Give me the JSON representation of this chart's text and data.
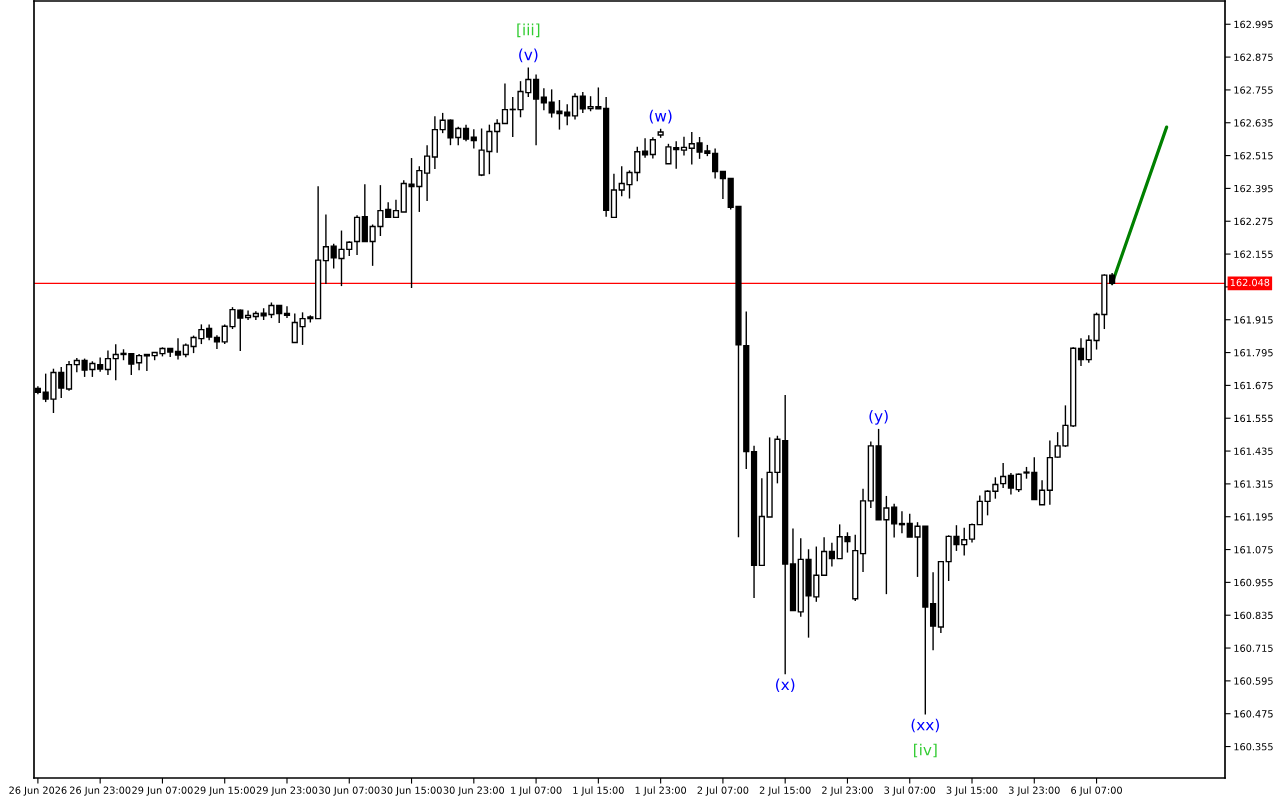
{
  "chart_data": {
    "type": "candlestick",
    "categories": [
      "26 Jun 2026",
      null,
      null,
      null,
      null,
      null,
      null,
      null,
      "26 Jun 23:00",
      null,
      null,
      null,
      null,
      null,
      null,
      null,
      "29 Jun 07:00",
      null,
      null,
      null,
      null,
      null,
      null,
      null,
      "29 Jun 15:00",
      null,
      null,
      null,
      null,
      null,
      null,
      null,
      "29 Jun 23:00",
      null,
      null,
      null,
      null,
      null,
      null,
      null,
      "30 Jun 07:00",
      null,
      null,
      null,
      null,
      null,
      null,
      null,
      "30 Jun 15:00",
      null,
      null,
      null,
      null,
      null,
      null,
      null,
      "30 Jun 23:00",
      null,
      null,
      null,
      null,
      null,
      null,
      null,
      "1 Jul 07:00",
      null,
      null,
      null,
      null,
      null,
      null,
      null,
      "1 Jul 15:00",
      null,
      null,
      null,
      null,
      null,
      null,
      null,
      "1 Jul 23:00",
      null,
      null,
      null,
      null,
      null,
      null,
      null,
      "2 Jul 07:00",
      null,
      null,
      null,
      null,
      null,
      null,
      null,
      "2 Jul 15:00",
      null,
      null,
      null,
      null,
      null,
      null,
      null,
      "2 Jul 23:00",
      null,
      null,
      null,
      null,
      null,
      null,
      null,
      "3 Jul 07:00",
      null,
      null,
      null,
      null,
      null,
      null,
      null,
      "3 Jul 15:00",
      null,
      null,
      null,
      null,
      null,
      null,
      null,
      "3 Jul 23:00",
      null,
      null,
      null,
      null,
      null,
      null,
      null,
      "6 Jul 07:00",
      null,
      null,
      null,
      null,
      null,
      null,
      null,
      null,
      null,
      null,
      null,
      null,
      null,
      null,
      null,
      null
    ],
    "ohlc": [
      [
        161.664,
        161.672,
        161.643,
        161.65
      ],
      [
        161.65,
        161.718,
        161.614,
        161.625
      ],
      [
        161.625,
        161.736,
        161.574,
        161.722
      ],
      [
        161.722,
        161.742,
        161.629,
        161.665
      ],
      [
        161.662,
        161.764,
        161.655,
        161.751
      ],
      [
        161.751,
        161.775,
        161.723,
        161.766
      ],
      [
        161.766,
        161.773,
        161.706,
        161.731
      ],
      [
        161.733,
        161.763,
        161.706,
        161.755
      ],
      [
        161.751,
        161.777,
        161.725,
        161.735
      ],
      [
        161.733,
        161.803,
        161.713,
        161.773
      ],
      [
        161.773,
        161.825,
        161.694,
        161.788
      ],
      [
        161.792,
        161.807,
        161.767,
        161.788
      ],
      [
        161.791,
        161.792,
        161.713,
        161.753
      ],
      [
        161.758,
        161.79,
        161.73,
        161.784
      ],
      [
        161.788,
        161.788,
        161.728,
        161.783
      ],
      [
        161.784,
        161.797,
        161.767,
        161.795
      ],
      [
        161.791,
        161.814,
        161.781,
        161.81
      ],
      [
        161.81,
        161.812,
        161.779,
        161.797
      ],
      [
        161.799,
        161.847,
        161.77,
        161.786
      ],
      [
        161.788,
        161.828,
        161.778,
        161.822
      ],
      [
        161.817,
        161.857,
        161.793,
        161.85
      ],
      [
        161.846,
        161.898,
        161.826,
        161.879
      ],
      [
        161.883,
        161.898,
        161.84,
        161.852
      ],
      [
        161.85,
        161.858,
        161.808,
        161.834
      ],
      [
        161.834,
        161.898,
        161.826,
        161.891
      ],
      [
        161.89,
        161.961,
        161.881,
        161.952
      ],
      [
        161.95,
        161.952,
        161.801,
        161.921
      ],
      [
        161.923,
        161.949,
        161.914,
        161.931
      ],
      [
        161.927,
        161.946,
        161.914,
        161.938
      ],
      [
        161.939,
        161.957,
        161.914,
        161.929
      ],
      [
        161.934,
        161.978,
        161.921,
        161.967
      ],
      [
        161.967,
        161.967,
        161.903,
        161.938
      ],
      [
        161.938,
        161.964,
        161.921,
        161.931
      ],
      [
        161.832,
        161.938,
        161.832,
        161.905
      ],
      [
        161.89,
        161.942,
        161.823,
        161.919
      ],
      [
        161.925,
        161.931,
        161.905,
        161.919
      ],
      [
        161.919,
        162.403,
        161.919,
        162.133
      ],
      [
        162.131,
        162.3,
        162.046,
        162.182
      ],
      [
        162.184,
        162.193,
        162.102,
        162.141
      ],
      [
        162.139,
        162.241,
        162.038,
        162.172
      ],
      [
        162.172,
        162.202,
        162.148,
        162.198
      ],
      [
        162.201,
        162.297,
        162.152,
        162.289
      ],
      [
        162.292,
        162.41,
        162.201,
        162.201
      ],
      [
        162.201,
        162.263,
        162.112,
        162.256
      ],
      [
        162.256,
        162.407,
        162.221,
        162.314
      ],
      [
        162.318,
        162.344,
        162.287,
        162.289
      ],
      [
        162.289,
        162.354,
        162.289,
        162.314
      ],
      [
        162.309,
        162.425,
        162.309,
        162.413
      ],
      [
        162.41,
        162.506,
        162.031,
        162.402
      ],
      [
        162.402,
        162.476,
        162.309,
        162.46
      ],
      [
        162.451,
        162.553,
        162.349,
        162.513
      ],
      [
        162.51,
        162.659,
        162.466,
        162.61
      ],
      [
        162.61,
        162.671,
        162.597,
        162.644
      ],
      [
        162.644,
        162.647,
        162.553,
        162.58
      ],
      [
        162.581,
        162.62,
        162.553,
        162.614
      ],
      [
        162.614,
        162.628,
        162.567,
        162.575
      ],
      [
        162.582,
        162.611,
        162.541,
        162.57
      ],
      [
        162.444,
        162.614,
        162.44,
        162.535
      ],
      [
        162.53,
        162.628,
        162.447,
        162.603
      ],
      [
        162.603,
        162.648,
        162.525,
        162.632
      ],
      [
        162.632,
        162.778,
        162.63,
        162.683
      ],
      [
        162.684,
        162.729,
        162.583,
        162.683
      ],
      [
        162.683,
        162.787,
        162.655,
        162.749
      ],
      [
        162.745,
        162.837,
        162.729,
        162.793
      ],
      [
        162.793,
        162.811,
        162.553,
        162.722
      ],
      [
        162.728,
        162.761,
        162.681,
        162.708
      ],
      [
        162.71,
        162.757,
        162.654,
        162.671
      ],
      [
        162.677,
        162.718,
        162.61,
        162.669
      ],
      [
        162.674,
        162.703,
        162.626,
        162.66
      ],
      [
        162.66,
        162.743,
        162.647,
        162.731
      ],
      [
        162.732,
        162.747,
        162.671,
        162.686
      ],
      [
        162.687,
        162.732,
        162.677,
        162.694
      ],
      [
        162.694,
        162.764,
        162.685,
        162.686
      ],
      [
        162.687,
        162.729,
        162.291,
        162.315
      ],
      [
        162.289,
        162.449,
        162.289,
        162.389
      ],
      [
        162.389,
        162.476,
        162.366,
        162.413
      ],
      [
        162.409,
        162.461,
        162.358,
        162.453
      ],
      [
        162.453,
        162.547,
        162.421,
        162.529
      ],
      [
        162.531,
        162.578,
        162.507,
        162.518
      ],
      [
        162.519,
        162.582,
        162.504,
        162.573
      ],
      [
        162.59,
        162.613,
        162.58,
        162.601
      ],
      [
        162.485,
        162.558,
        162.485,
        162.547
      ],
      [
        162.544,
        162.567,
        162.467,
        162.537
      ],
      [
        162.535,
        162.584,
        162.515,
        162.545
      ],
      [
        162.542,
        162.601,
        162.482,
        162.558
      ],
      [
        162.561,
        162.583,
        162.503,
        162.528
      ],
      [
        162.532,
        162.554,
        162.513,
        162.523
      ],
      [
        162.523,
        162.541,
        162.431,
        162.457
      ],
      [
        162.457,
        162.457,
        162.356,
        162.431
      ],
      [
        162.431,
        162.431,
        162.318,
        162.326
      ],
      [
        162.329,
        162.329,
        161.12,
        161.823
      ],
      [
        161.82,
        161.945,
        161.369,
        161.433
      ],
      [
        161.433,
        161.454,
        160.898,
        161.017
      ],
      [
        161.017,
        161.336,
        161.017,
        161.196
      ],
      [
        161.194,
        161.485,
        161.194,
        161.357
      ],
      [
        161.357,
        161.491,
        161.317,
        161.478
      ],
      [
        161.473,
        161.64,
        160.619,
        161.022
      ],
      [
        161.022,
        161.152,
        160.852,
        160.852
      ],
      [
        160.847,
        161.116,
        160.829,
        161.039
      ],
      [
        161.039,
        161.076,
        160.753,
        160.906
      ],
      [
        160.902,
        161.086,
        160.884,
        160.981
      ],
      [
        160.981,
        161.12,
        160.981,
        161.068
      ],
      [
        161.068,
        161.1,
        161.013,
        161.042
      ],
      [
        161.042,
        161.167,
        161.042,
        161.122
      ],
      [
        161.122,
        161.138,
        161.064,
        161.104
      ],
      [
        160.895,
        161.129,
        160.887,
        161.071
      ],
      [
        161.06,
        161.297,
        160.993,
        161.253
      ],
      [
        161.253,
        161.47,
        161.227,
        161.454
      ],
      [
        161.454,
        161.516,
        161.184,
        161.184
      ],
      [
        161.184,
        161.271,
        160.912,
        161.227
      ],
      [
        161.23,
        161.242,
        161.119,
        161.169
      ],
      [
        161.17,
        161.215,
        161.135,
        161.166
      ],
      [
        161.17,
        161.206,
        161.121,
        161.121
      ],
      [
        161.121,
        161.175,
        160.975,
        161.16
      ],
      [
        161.16,
        161.16,
        160.472,
        160.865
      ],
      [
        160.877,
        160.992,
        160.707,
        160.795
      ],
      [
        160.792,
        161.031,
        160.77,
        161.031
      ],
      [
        161.031,
        161.127,
        160.96,
        161.123
      ],
      [
        161.123,
        161.164,
        161.07,
        161.093
      ],
      [
        161.093,
        161.155,
        161.053,
        161.111
      ],
      [
        161.113,
        161.17,
        161.101,
        161.166
      ],
      [
        161.166,
        161.273,
        161.166,
        161.251
      ],
      [
        161.251,
        161.292,
        161.2,
        161.288
      ],
      [
        161.288,
        161.339,
        161.261,
        161.313
      ],
      [
        161.316,
        161.391,
        161.3,
        161.342
      ],
      [
        161.346,
        161.355,
        161.276,
        161.3
      ],
      [
        161.294,
        161.353,
        161.285,
        161.35
      ],
      [
        161.358,
        161.377,
        161.334,
        161.355
      ],
      [
        161.357,
        161.412,
        161.258,
        161.258
      ],
      [
        161.239,
        161.328,
        161.239,
        161.292
      ],
      [
        161.292,
        161.474,
        161.239,
        161.411
      ],
      [
        161.413,
        161.504,
        161.411,
        161.454
      ],
      [
        161.454,
        161.602,
        161.45,
        161.529
      ],
      [
        161.527,
        161.814,
        161.523,
        161.811
      ],
      [
        161.81,
        161.847,
        161.746,
        161.769
      ],
      [
        161.769,
        161.858,
        161.758,
        161.84
      ],
      [
        161.839,
        161.941,
        161.806,
        161.934
      ],
      [
        161.934,
        162.081,
        161.881,
        162.078
      ],
      [
        162.078,
        162.086,
        162.041,
        162.048
      ],
      null,
      null,
      null,
      null,
      null,
      null,
      null,
      null,
      null,
      null,
      null,
      null,
      null,
      null
    ],
    "color": "#000000",
    "series": [
      {
        "type": "line",
        "color": "#008000",
        "values": [
          null,
          null,
          null,
          null,
          null,
          null,
          null,
          null,
          null,
          null,
          null,
          null,
          null,
          null,
          null,
          null,
          null,
          null,
          null,
          null,
          null,
          null,
          null,
          null,
          null,
          null,
          null,
          null,
          null,
          null,
          null,
          null,
          null,
          null,
          null,
          null,
          null,
          null,
          null,
          null,
          null,
          null,
          null,
          null,
          null,
          null,
          null,
          null,
          null,
          null,
          null,
          null,
          null,
          null,
          null,
          null,
          null,
          null,
          null,
          null,
          null,
          null,
          null,
          null,
          null,
          null,
          null,
          null,
          null,
          null,
          null,
          null,
          null,
          null,
          null,
          null,
          null,
          null,
          null,
          null,
          null,
          null,
          null,
          null,
          null,
          null,
          null,
          null,
          null,
          null,
          null,
          null,
          null,
          null,
          null,
          null,
          null,
          null,
          null,
          null,
          null,
          null,
          null,
          null,
          null,
          null,
          null,
          null,
          null,
          null,
          null,
          null,
          null,
          null,
          null,
          null,
          null,
          null,
          null,
          null,
          null,
          null,
          null,
          null,
          null,
          null,
          null,
          null,
          null,
          null,
          null,
          null,
          null,
          null,
          null,
          null,
          null,
          null,
          162.048,
          null,
          null,
          null,
          null,
          null,
          null,
          162.619,
          null,
          null,
          null,
          null,
          null,
          null,
          null
        ]
      }
    ],
    "ylim": [
      160.24,
      163.08
    ],
    "yticks": [
      160.355,
      160.475,
      160.595,
      160.715,
      160.835,
      160.955,
      161.075,
      161.195,
      161.315,
      161.435,
      161.555,
      161.675,
      161.795,
      161.915,
      {
        "value": 162.035,
        "label": null
      },
      162.155,
      162.275,
      162.395,
      162.515,
      162.635,
      162.755,
      162.875,
      162.995
    ],
    "ref_lines": [
      {
        "axis": "y",
        "value": 162.048,
        "label": "162.048",
        "color": "#ff0000"
      }
    ],
    "annotations": [
      {
        "text": "(v)",
        "y": 162.837
      },
      {
        "text": "[iii]",
        "y": 162.837
      },
      {
        "text": "(w)",
        "y": 162.613
      },
      {
        "text": "(x)",
        "y": 160.619
      },
      {
        "text": "(y)",
        "y": 161.516
      },
      {
        "text": "(xx)",
        "y": 160.472
      },
      {
        "text": "[iv]",
        "y": 160.472
      }
    ]
  }
}
